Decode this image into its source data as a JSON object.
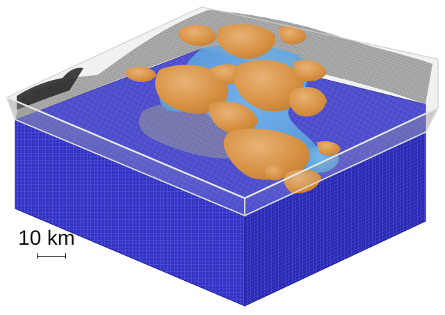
{
  "scale_bar": {
    "label": "10 km",
    "length_km": 10
  },
  "colors": {
    "mesh_blue_dark": "#2525a8",
    "mesh_blue": "#3535cc",
    "mesh_blue_light": "#4a4ae0",
    "mesh_line": "#9aa0ff",
    "seafloor_top": "#3d3dd6",
    "terrain_gray": "#7a7a7a",
    "water_lightblue": "#4fa3e6",
    "body_orange": "#e08a2a",
    "body_orange_light": "#f0a860",
    "glass_edge": "#cfcfcf"
  }
}
